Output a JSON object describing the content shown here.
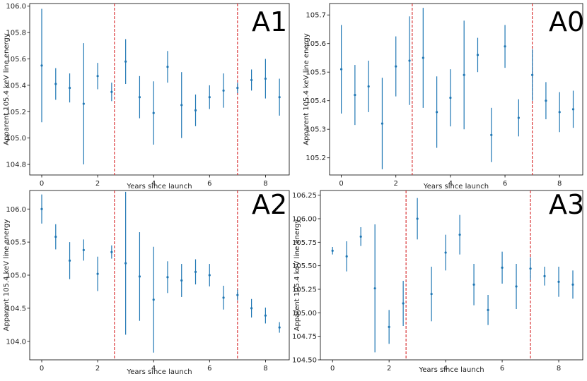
{
  "figure": {
    "xlabel": "Years since launch",
    "ylabel": "Apparent 105.4 keV line energy"
  },
  "colors": {
    "errorbar": "#1f77b4",
    "vline": "#d62728",
    "axis": "#000000"
  },
  "chart_data": [
    {
      "type": "scatter",
      "title": "A1",
      "xlabel": "Years since launch",
      "ylabel": "Apparent 105.4 keV line energy",
      "xlim": [
        -0.43,
        8.85
      ],
      "ylim": [
        104.72,
        106.02
      ],
      "xticks": [
        0,
        2,
        4,
        6,
        8
      ],
      "xtick_labels": [
        "0",
        "2",
        "4",
        "6",
        "8"
      ],
      "yticks": [
        104.8,
        105.0,
        105.2,
        105.4,
        105.6,
        105.8,
        106.0
      ],
      "ytick_labels": [
        "104.8",
        "105.0",
        "105.2",
        "105.4",
        "105.6",
        "105.8",
        "106.0"
      ],
      "vlines": [
        2.6,
        7.0
      ],
      "x": [
        0,
        0.5,
        1,
        1.5,
        2,
        2.5,
        3,
        3.5,
        4,
        4.5,
        5,
        5.5,
        6,
        6.5,
        7,
        7.5,
        8,
        8.5
      ],
      "y": [
        105.55,
        105.41,
        105.38,
        105.26,
        105.47,
        105.35,
        105.58,
        105.31,
        105.19,
        105.54,
        105.25,
        105.21,
        105.31,
        105.36,
        105.38,
        105.44,
        105.45,
        105.31
      ],
      "yerr": [
        0.43,
        0.12,
        0.11,
        0.46,
        0.1,
        0.07,
        0.17,
        0.16,
        0.24,
        0.12,
        0.25,
        0.12,
        0.09,
        0.13,
        0.04,
        0.08,
        0.15,
        0.14
      ]
    },
    {
      "type": "scatter",
      "title": "A0",
      "xlabel": "Years since launch",
      "ylabel": "Apparent 105.4 keV line energy",
      "xlim": [
        -0.43,
        8.85
      ],
      "ylim": [
        105.14,
        105.74
      ],
      "xticks": [
        0,
        2,
        4,
        6,
        8
      ],
      "xtick_labels": [
        "0",
        "2",
        "4",
        "6",
        "8"
      ],
      "yticks": [
        105.2,
        105.3,
        105.4,
        105.5,
        105.6,
        105.7
      ],
      "ytick_labels": [
        "105.2",
        "105.3",
        "105.4",
        "105.5",
        "105.6",
        "105.7"
      ],
      "vlines": [
        2.6,
        7.0
      ],
      "x": [
        0,
        0.5,
        1,
        1.5,
        2,
        2.5,
        3,
        3.5,
        4,
        4.5,
        5,
        5.5,
        6,
        6.5,
        7,
        7.5,
        8,
        8.5
      ],
      "y": [
        105.51,
        105.42,
        105.45,
        105.32,
        105.52,
        105.54,
        105.55,
        105.36,
        105.41,
        105.49,
        105.56,
        105.28,
        105.59,
        105.34,
        105.49,
        105.4,
        105.36,
        105.37
      ],
      "yerr": [
        0.155,
        0.105,
        0.09,
        0.16,
        0.105,
        0.155,
        0.175,
        0.125,
        0.1,
        0.19,
        0.06,
        0.095,
        0.075,
        0.065,
        0.09,
        0.065,
        0.07,
        0.065
      ]
    },
    {
      "type": "scatter",
      "title": "A2",
      "xlabel": "Years since launch",
      "ylabel": "Apparent 105.4 keV line energy",
      "xlim": [
        -0.43,
        8.85
      ],
      "ylim": [
        103.72,
        106.28
      ],
      "xticks": [
        0,
        2,
        4,
        6,
        8
      ],
      "xtick_labels": [
        "0",
        "2",
        "4",
        "6",
        "8"
      ],
      "yticks": [
        104.0,
        104.5,
        105.0,
        105.5,
        106.0
      ],
      "ytick_labels": [
        "104.0",
        "104.5",
        "105.0",
        "105.5",
        "106.0"
      ],
      "vlines": [
        2.6,
        7.0
      ],
      "x": [
        0,
        0.5,
        1,
        1.5,
        2,
        2.5,
        3,
        3.5,
        4,
        4.5,
        5,
        5.5,
        6,
        6.5,
        7,
        7.5,
        8,
        8.5
      ],
      "y": [
        106.0,
        105.58,
        105.22,
        105.38,
        105.02,
        105.35,
        105.18,
        104.98,
        104.63,
        104.97,
        104.92,
        105.05,
        105.0,
        104.66,
        104.7,
        104.5,
        104.39,
        104.21
      ],
      "yerr": [
        0.22,
        0.19,
        0.28,
        0.16,
        0.26,
        0.1,
        1.08,
        0.67,
        0.8,
        0.24,
        0.25,
        0.19,
        0.17,
        0.18,
        0.08,
        0.14,
        0.12,
        0.08
      ]
    },
    {
      "type": "scatter",
      "title": "A3",
      "xlabel": "Years since launch",
      "ylabel": "Apparent 105.4 keV line energy",
      "xlim": [
        -0.43,
        8.85
      ],
      "ylim": [
        104.5,
        106.3
      ],
      "xticks": [
        0,
        2,
        4,
        6,
        8
      ],
      "xtick_labels": [
        "0",
        "2",
        "4",
        "6",
        "8"
      ],
      "yticks": [
        104.5,
        104.75,
        105.0,
        105.25,
        105.5,
        105.75,
        106.0,
        106.25
      ],
      "ytick_labels": [
        "104.50",
        "104.75",
        "105.00",
        "105.25",
        "105.50",
        "105.75",
        "106.00",
        "106.25"
      ],
      "vlines": [
        2.6,
        7.0
      ],
      "x": [
        0,
        0.5,
        1,
        1.5,
        2,
        2.5,
        3,
        3.5,
        4,
        4.5,
        5,
        5.5,
        6,
        6.5,
        7,
        7.5,
        8,
        8.5
      ],
      "y": [
        105.66,
        105.6,
        105.81,
        105.26,
        104.85,
        105.1,
        106.0,
        105.2,
        105.64,
        105.83,
        105.3,
        105.03,
        105.48,
        105.28,
        105.47,
        105.39,
        105.33,
        105.3
      ],
      "yerr": [
        0.04,
        0.16,
        0.1,
        0.68,
        0.18,
        0.24,
        0.22,
        0.29,
        0.19,
        0.21,
        0.22,
        0.16,
        0.17,
        0.24,
        0.12,
        0.1,
        0.16,
        0.15
      ]
    }
  ]
}
